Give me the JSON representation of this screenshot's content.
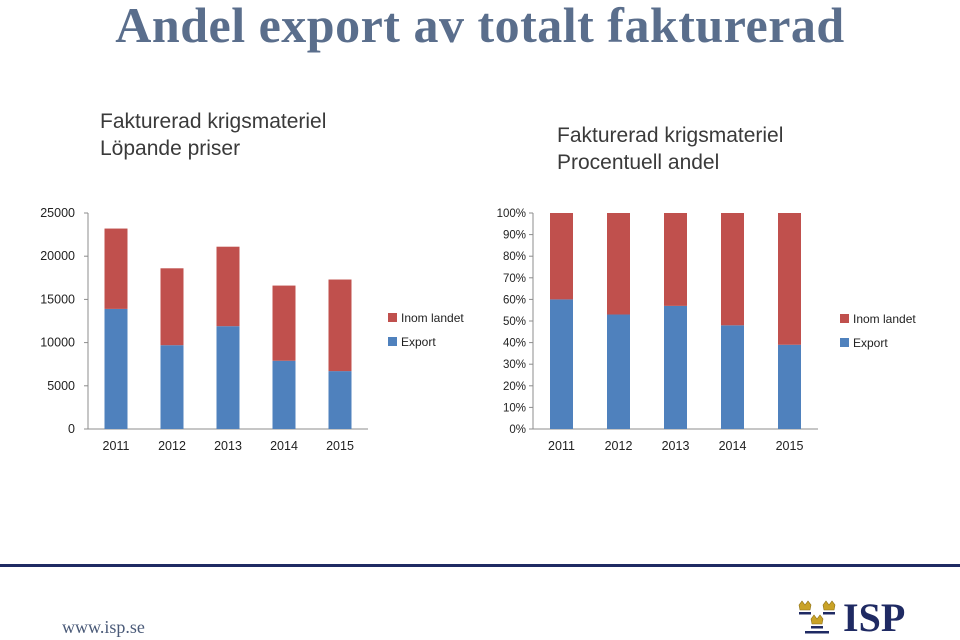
{
  "slide": {
    "title": "Andel export av totalt fakturerad",
    "footer_url": "www.isp.se",
    "logo_text": "ISP"
  },
  "colors": {
    "export": "#4f81bd",
    "inom_landet": "#c0504d",
    "title": "#5a6e8c",
    "footer": "#1f2a63"
  },
  "chart_data": [
    {
      "type": "bar",
      "stacked": true,
      "title": [
        "Fakturerad krigsmateriel",
        "Löpande priser"
      ],
      "categories": [
        "2011",
        "2012",
        "2013",
        "2014",
        "2015"
      ],
      "series": [
        {
          "name": "Export",
          "values": [
            13900,
            9700,
            11900,
            7900,
            6700
          ]
        },
        {
          "name": "Inom landet",
          "values": [
            9300,
            8900,
            9200,
            8700,
            10600
          ]
        }
      ],
      "ylim": [
        0,
        25000
      ],
      "yticks": [
        "0",
        "5000",
        "10000",
        "15000",
        "20000",
        "25000"
      ],
      "legend": "right",
      "grid": false
    },
    {
      "type": "bar",
      "stacked": true,
      "percent": true,
      "title": [
        "Fakturerad krigsmateriel",
        "Procentuell andel"
      ],
      "categories": [
        "2011",
        "2012",
        "2013",
        "2014",
        "2015"
      ],
      "series": [
        {
          "name": "Export",
          "values": [
            60,
            53,
            57,
            48,
            39
          ]
        },
        {
          "name": "Inom landet",
          "values": [
            40,
            47,
            43,
            52,
            61
          ]
        }
      ],
      "ylim": [
        0,
        100
      ],
      "yticks": [
        "0%",
        "10%",
        "20%",
        "30%",
        "40%",
        "50%",
        "60%",
        "70%",
        "80%",
        "90%",
        "100%"
      ],
      "legend": "right",
      "grid": false
    }
  ]
}
